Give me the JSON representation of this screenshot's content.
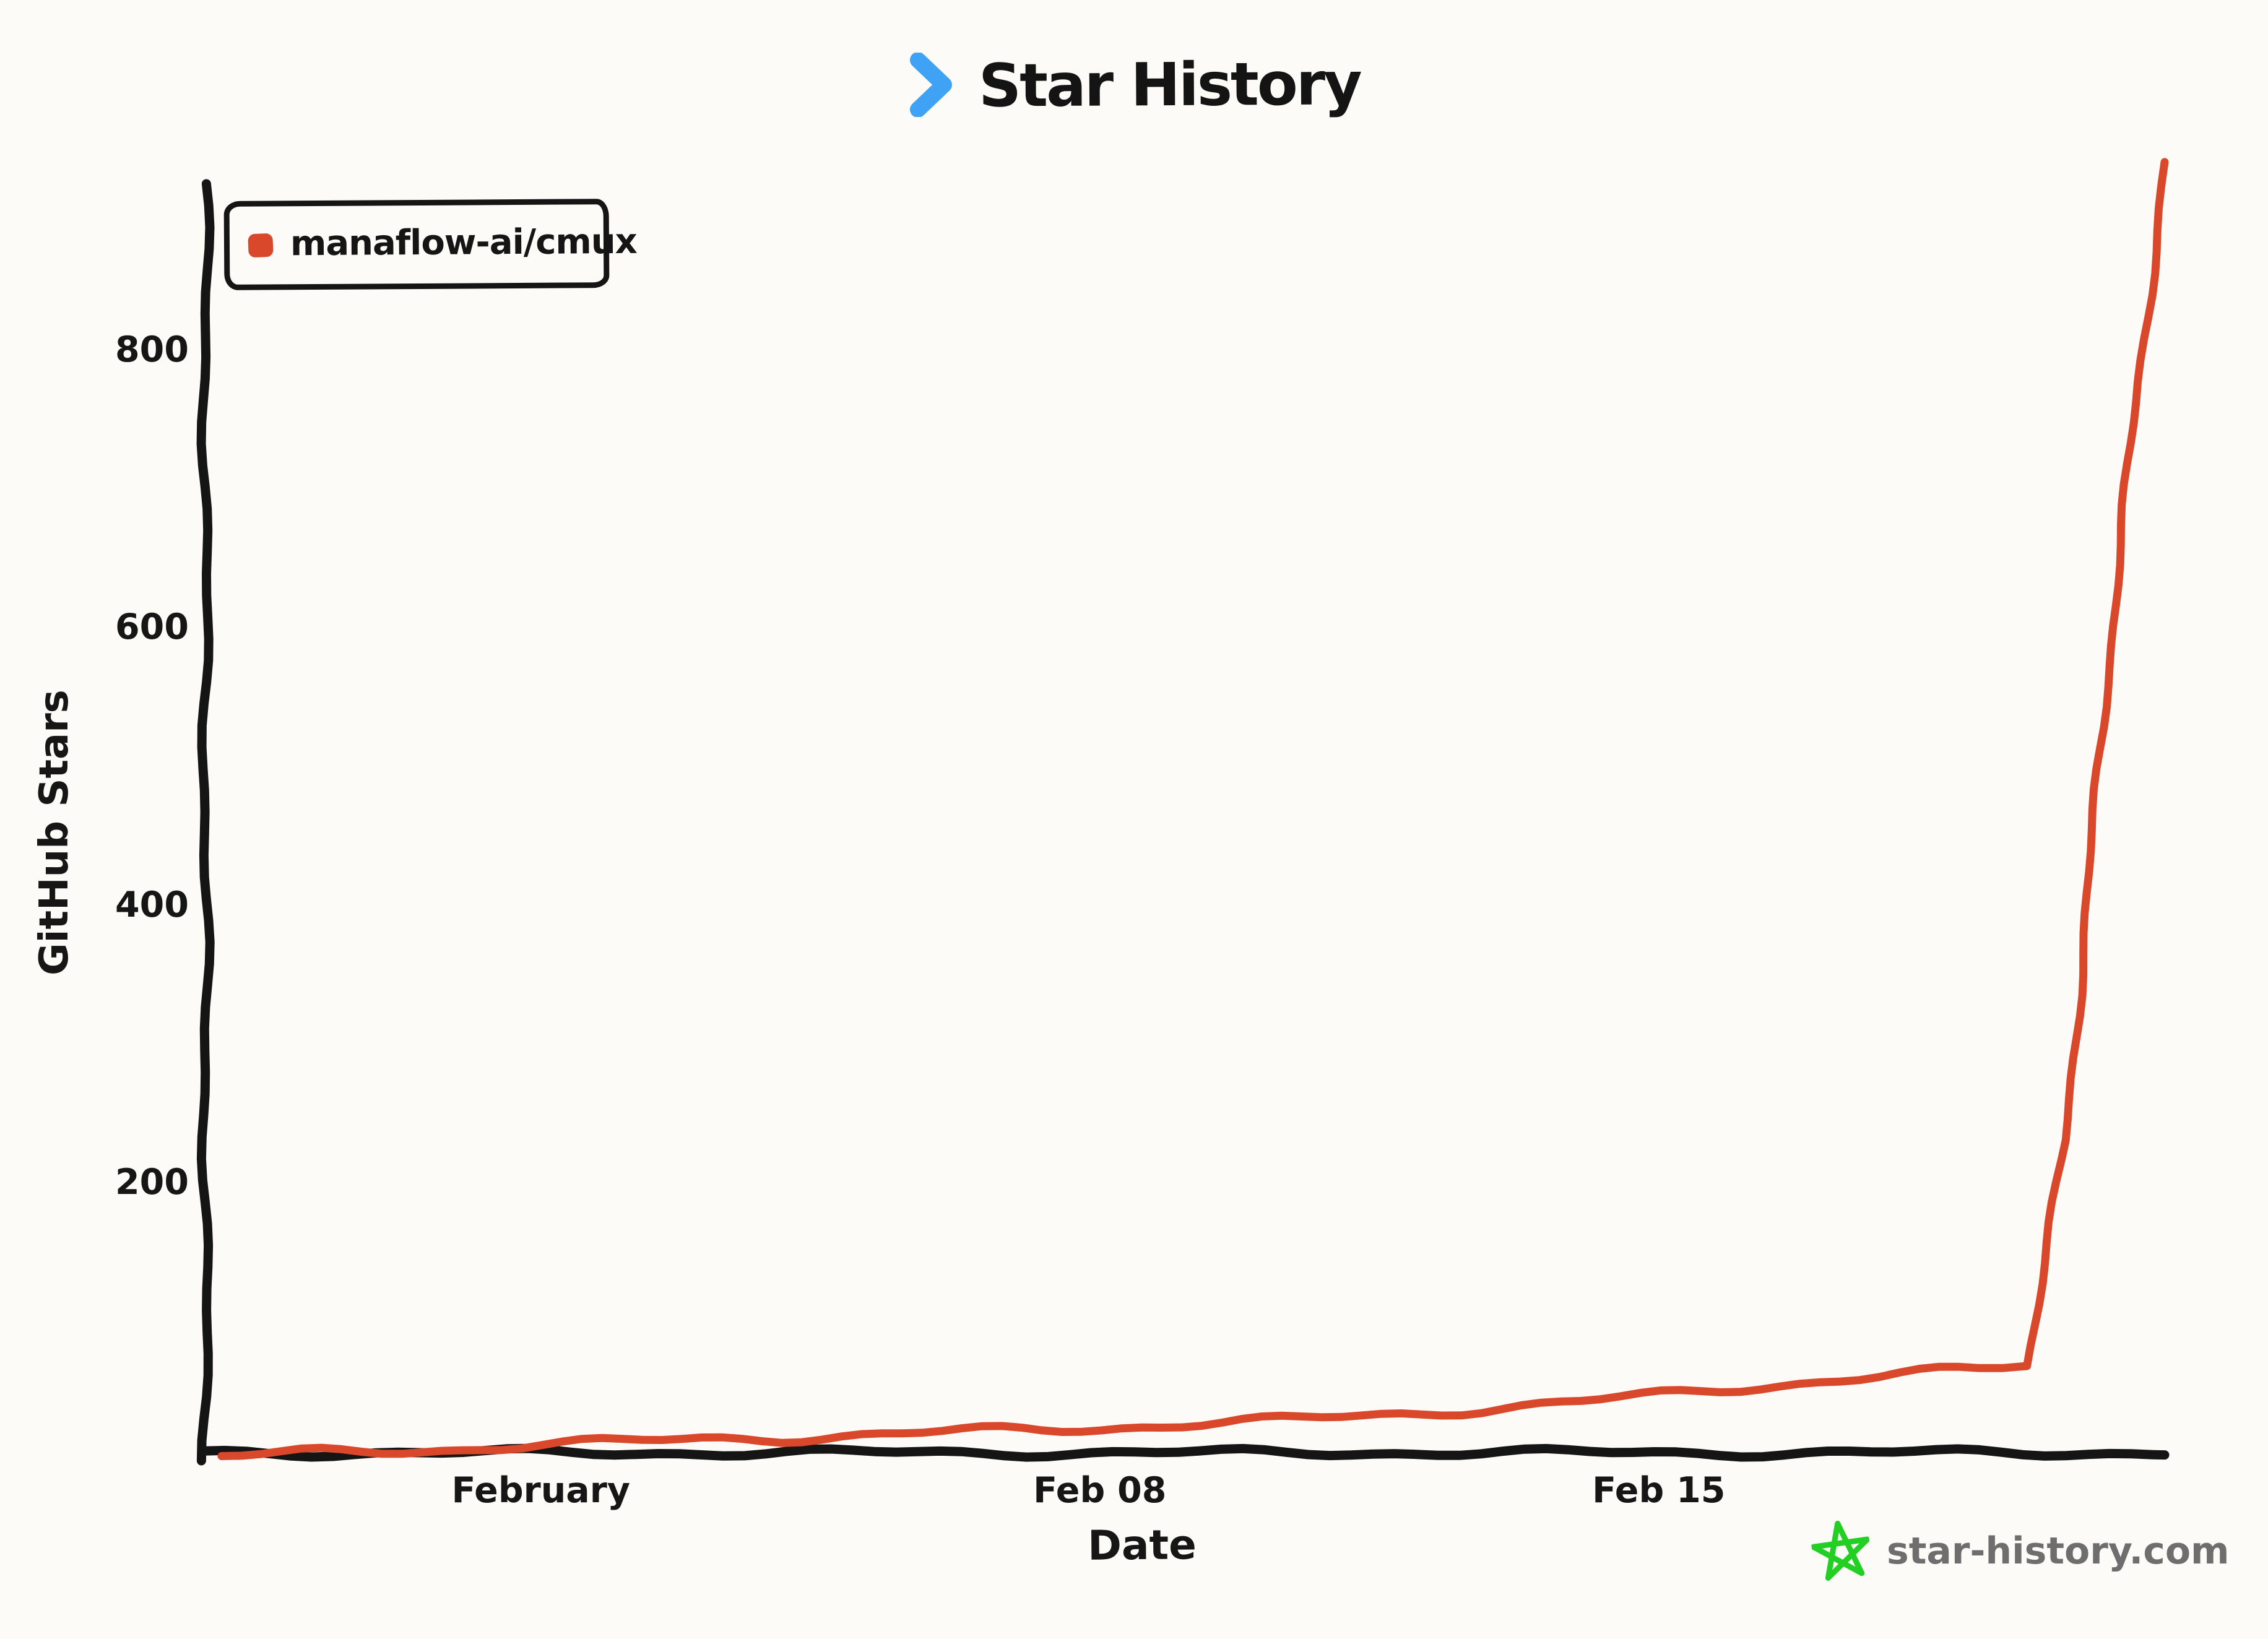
{
  "title": {
    "text": "Star History",
    "chevron_color": "#3fa2f4"
  },
  "legend": {
    "series_label": "manaflow-ai/cmux",
    "marker_color": "#d9482b"
  },
  "axes": {
    "y_label": "GitHub Stars",
    "x_label": "Date"
  },
  "footer": {
    "site": "star-history.com",
    "star_color": "#22cf22",
    "text_color": "#6e6e6e"
  },
  "colors": {
    "background": "#fdfbf8",
    "axis": "#151515",
    "line": "#d9482b"
  },
  "chart_data": {
    "type": "line",
    "title": "Star History",
    "xlabel": "Date",
    "ylabel": "GitHub Stars",
    "grid": false,
    "legend_position": "top-left",
    "ylim": [
      0,
      1000
    ],
    "y_tick_values": [
      200,
      400,
      600,
      800
    ],
    "x_tick_labels": [
      "February",
      "Feb 08",
      "Feb 15"
    ],
    "x_tick_days": [
      4,
      11,
      18
    ],
    "x_range": [
      "Jan 28",
      "Feb 21"
    ],
    "series": [
      {
        "name": "manaflow-ai/cmux",
        "color": "#d9482b",
        "points": [
          {
            "d": 0,
            "date": "Jan 28",
            "stars": 3
          },
          {
            "d": 1,
            "date": "Jan 29",
            "stars": 5
          },
          {
            "d": 2,
            "date": "Jan 30",
            "stars": 6
          },
          {
            "d": 3,
            "date": "Jan 31",
            "stars": 8
          },
          {
            "d": 4,
            "date": "Feb 01",
            "stars": 12
          },
          {
            "d": 5,
            "date": "Feb 02",
            "stars": 13
          },
          {
            "d": 6,
            "date": "Feb 03",
            "stars": 15
          },
          {
            "d": 7,
            "date": "Feb 04",
            "stars": 16
          },
          {
            "d": 8,
            "date": "Feb 05",
            "stars": 18
          },
          {
            "d": 9,
            "date": "Feb 06",
            "stars": 20
          },
          {
            "d": 10,
            "date": "Feb 07",
            "stars": 22
          },
          {
            "d": 11,
            "date": "Feb 08",
            "stars": 23
          },
          {
            "d": 12,
            "date": "Feb 09",
            "stars": 26
          },
          {
            "d": 13,
            "date": "Feb 10",
            "stars": 28
          },
          {
            "d": 14,
            "date": "Feb 11",
            "stars": 31
          },
          {
            "d": 15,
            "date": "Feb 12",
            "stars": 34
          },
          {
            "d": 16,
            "date": "Feb 13",
            "stars": 38
          },
          {
            "d": 17,
            "date": "Feb 14",
            "stars": 42
          },
          {
            "d": 18,
            "date": "Feb 15",
            "stars": 47
          },
          {
            "d": 19,
            "date": "Feb 16",
            "stars": 52
          },
          {
            "d": 20,
            "date": "Feb 17",
            "stars": 57
          },
          {
            "d": 21,
            "date": "Feb 18",
            "stars": 62
          },
          {
            "d": 22,
            "date": "Feb 19",
            "stars": 65
          },
          {
            "d": 22.6,
            "date": "Feb 19",
            "stars": 68
          },
          {
            "d": 23.1,
            "date": "Feb 20",
            "stars": 230
          },
          {
            "d": 23.6,
            "date": "Feb 20",
            "stars": 560
          },
          {
            "d": 24.0,
            "date": "Feb 21",
            "stars": 780
          },
          {
            "d": 24.35,
            "date": "Feb 21",
            "stars": 935
          }
        ]
      }
    ]
  }
}
